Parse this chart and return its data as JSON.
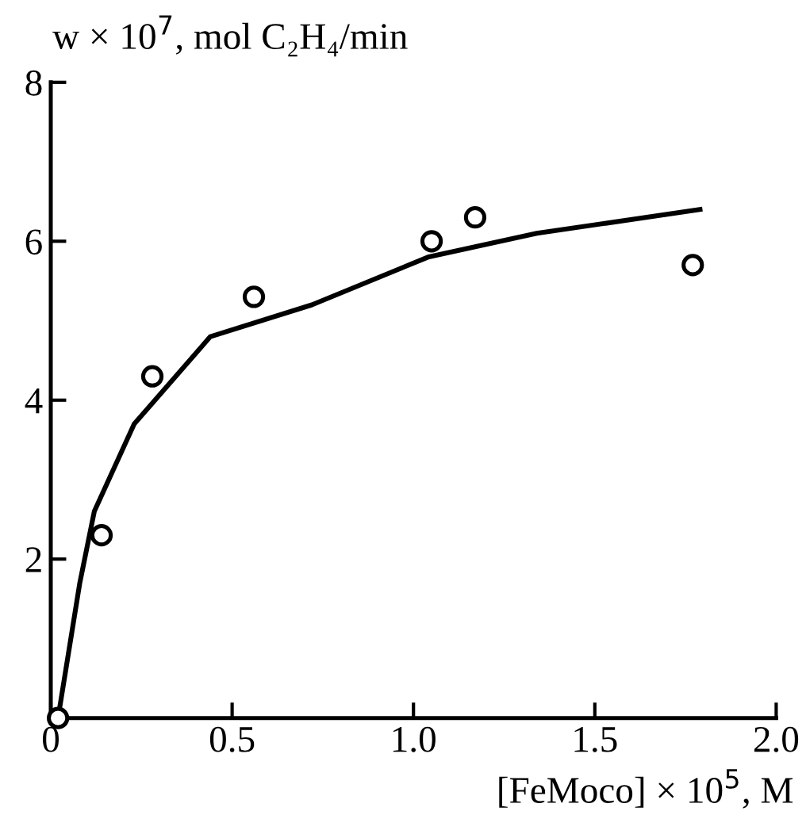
{
  "chart_data": {
    "type": "scatter",
    "ylabel": "w × 10$^{7}$, mol C₂H₄/min",
    "xlabel": "[FeMoco] × 10$^{5}$, M",
    "xlim": [
      0,
      2.0
    ],
    "xticks": [
      0,
      0.5,
      {
        "value": 1.0,
        "label": "1.0"
      },
      1.5,
      {
        "value": 2.0,
        "label": "2.0"
      }
    ],
    "ylim": [
      0,
      8
    ],
    "yticks": [
      2,
      4,
      6,
      8
    ],
    "grid": false,
    "series": [
      {
        "color": "#000000",
        "marker": "circle",
        "x": [
          0.02,
          0.14,
          0.28,
          0.56,
          1.05,
          1.17,
          1.77
        ],
        "values": [
          0,
          2.3,
          4.3,
          5.3,
          6.0,
          6.3,
          5.7
        ]
      },
      {
        "type": "line",
        "color": "#000000",
        "marker": "none",
        "line_style": "solid",
        "x": [
          0.02,
          0.08,
          0.12,
          0.23,
          0.44,
          0.72,
          1.04,
          1.34,
          1.79
        ],
        "values": [
          0,
          1.7,
          2.6,
          3.7,
          4.8,
          5.2,
          5.8,
          6.1,
          6.4
        ]
      }
    ]
  }
}
